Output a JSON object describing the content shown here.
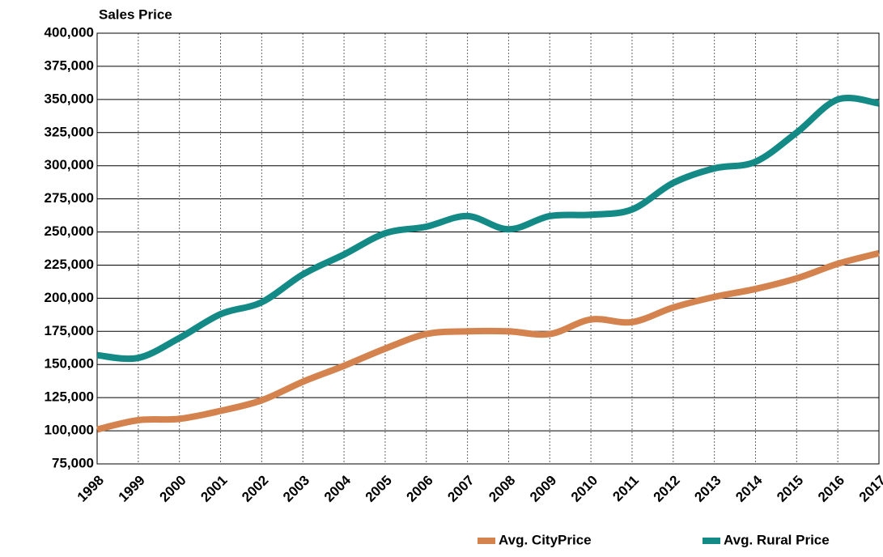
{
  "chart_data": {
    "type": "line",
    "ylabel": "Sales Price",
    "x": [
      1998,
      1999,
      2000,
      2001,
      2002,
      2003,
      2004,
      2005,
      2006,
      2007,
      2008,
      2009,
      2010,
      2011,
      2012,
      2013,
      2014,
      2015,
      2016,
      2017
    ],
    "series": [
      {
        "name": "Avg. CityPrice",
        "color": "#d4834f",
        "values": [
          101000,
          108000,
          109000,
          115000,
          123000,
          137000,
          149000,
          162000,
          173000,
          175000,
          175000,
          173000,
          184000,
          182000,
          193000,
          201000,
          207000,
          215000,
          226000,
          234000
        ]
      },
      {
        "name": "Avg. Rural Price",
        "color": "#138a86",
        "values": [
          157000,
          155000,
          170000,
          188000,
          197000,
          218000,
          233000,
          249000,
          254000,
          262000,
          252000,
          262000,
          263000,
          267000,
          287000,
          298000,
          303000,
          325000,
          350000,
          347000
        ]
      }
    ],
    "xlim": [
      1998,
      2017
    ],
    "xticks": [
      1998,
      1999,
      2000,
      2001,
      2002,
      2003,
      2004,
      2005,
      2006,
      2007,
      2008,
      2009,
      2010,
      2011,
      2012,
      2013,
      2014,
      2015,
      2016,
      2017
    ],
    "ylim": [
      75000,
      400000
    ],
    "yticks": [
      {
        "value": 75000,
        "label": "75,000"
      },
      {
        "value": 100000,
        "label": "100,000"
      },
      {
        "value": 125000,
        "label": "125,000"
      },
      {
        "value": 150000,
        "label": "150,000"
      },
      {
        "value": 175000,
        "label": "175,000"
      },
      {
        "value": 200000,
        "label": "200,000"
      },
      {
        "value": 225000,
        "label": "225,000"
      },
      {
        "value": 250000,
        "label": "250,000"
      },
      {
        "value": 275000,
        "label": "275,000"
      },
      {
        "value": 300000,
        "label": "300,000"
      },
      {
        "value": 325000,
        "label": "325,000"
      },
      {
        "value": 350000,
        "label": "350,000"
      },
      {
        "value": 375000,
        "label": "375,000"
      },
      {
        "value": 400000,
        "label": "400,000"
      }
    ],
    "grid": true,
    "legend": "bottom-right"
  }
}
